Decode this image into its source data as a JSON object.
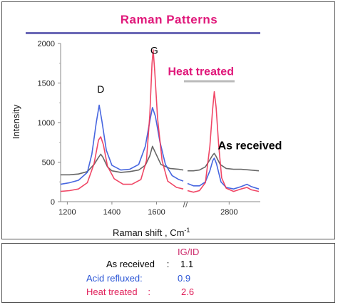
{
  "title": "Raman  Patterns",
  "stats": {
    "header": "IG/ID",
    "rows": [
      {
        "label": "As received",
        "sep": ":",
        "value": "1.1",
        "color": "#000000"
      },
      {
        "label": "Acid refluxed:",
        "sep": "",
        "value": "0.9",
        "color": "#2a55d6"
      },
      {
        "label": "Heat treated",
        "sep": ":",
        "value": "2.6",
        "color": "#e0205a"
      }
    ]
  },
  "chart_data": {
    "type": "line",
    "title": "Raman  Patterns",
    "xlabel": "Raman shift , Cm",
    "xlabel_superscript": "-1",
    "ylabel": "Intensity",
    "ylim": [
      0,
      2000
    ],
    "yticks": [
      "0",
      "500",
      "1000",
      "1500",
      "2000"
    ],
    "xticks": [
      "1200",
      "1400",
      "1600",
      "2800"
    ],
    "axis_break_marker": "//",
    "segments": [
      {
        "name": "left",
        "xlim": [
          1170,
          1720
        ]
      },
      {
        "name": "right",
        "xlim": [
          2520,
          3000
        ]
      }
    ],
    "annotations": [
      {
        "text": "D",
        "color": "#000000",
        "x": 1350,
        "y": 1380
      },
      {
        "text": "G",
        "color": "#000000",
        "x": 1590,
        "y": 1870
      },
      {
        "text": "Heat treated",
        "color": "#e0187a",
        "x": 2610,
        "y": 1600,
        "bold": true
      },
      {
        "text": "As received",
        "color": "#000000",
        "x": 2940,
        "y": 660,
        "bold": true
      }
    ],
    "series": [
      {
        "key": "as_received",
        "color": "#555555",
        "left": [
          [
            1170,
            340
          ],
          [
            1210,
            340
          ],
          [
            1250,
            350
          ],
          [
            1290,
            380
          ],
          [
            1320,
            470
          ],
          [
            1340,
            560
          ],
          [
            1350,
            600
          ],
          [
            1360,
            560
          ],
          [
            1380,
            440
          ],
          [
            1400,
            390
          ],
          [
            1440,
            370
          ],
          [
            1480,
            380
          ],
          [
            1520,
            400
          ],
          [
            1550,
            460
          ],
          [
            1570,
            580
          ],
          [
            1582,
            700
          ],
          [
            1595,
            620
          ],
          [
            1620,
            470
          ],
          [
            1660,
            420
          ],
          [
            1700,
            410
          ],
          [
            1720,
            400
          ]
        ],
        "right": [
          [
            2520,
            390
          ],
          [
            2560,
            390
          ],
          [
            2600,
            400
          ],
          [
            2640,
            440
          ],
          [
            2670,
            530
          ],
          [
            2690,
            590
          ],
          [
            2700,
            610
          ],
          [
            2710,
            580
          ],
          [
            2740,
            470
          ],
          [
            2780,
            420
          ],
          [
            2830,
            410
          ],
          [
            2880,
            410
          ],
          [
            2940,
            400
          ],
          [
            3000,
            390
          ]
        ]
      },
      {
        "key": "acid_refluxed",
        "color": "#3355dd",
        "left": [
          [
            1170,
            220
          ],
          [
            1210,
            240
          ],
          [
            1250,
            270
          ],
          [
            1290,
            370
          ],
          [
            1310,
            600
          ],
          [
            1330,
            1000
          ],
          [
            1343,
            1220
          ],
          [
            1355,
            1020
          ],
          [
            1375,
            650
          ],
          [
            1400,
            460
          ],
          [
            1440,
            400
          ],
          [
            1480,
            410
          ],
          [
            1520,
            470
          ],
          [
            1550,
            700
          ],
          [
            1570,
            1020
          ],
          [
            1582,
            1190
          ],
          [
            1595,
            1080
          ],
          [
            1615,
            760
          ],
          [
            1640,
            470
          ],
          [
            1670,
            330
          ],
          [
            1700,
            280
          ],
          [
            1720,
            260
          ]
        ],
        "right": [
          [
            2520,
            230
          ],
          [
            2560,
            200
          ],
          [
            2600,
            200
          ],
          [
            2640,
            250
          ],
          [
            2670,
            390
          ],
          [
            2690,
            520
          ],
          [
            2700,
            550
          ],
          [
            2715,
            480
          ],
          [
            2745,
            250
          ],
          [
            2780,
            180
          ],
          [
            2830,
            160
          ],
          [
            2880,
            190
          ],
          [
            2920,
            220
          ],
          [
            2950,
            190
          ],
          [
            3000,
            160
          ]
        ]
      },
      {
        "key": "heat_treated",
        "color": "#ee3355",
        "left": [
          [
            1170,
            130
          ],
          [
            1210,
            140
          ],
          [
            1250,
            160
          ],
          [
            1290,
            240
          ],
          [
            1320,
            480
          ],
          [
            1340,
            780
          ],
          [
            1350,
            820
          ],
          [
            1362,
            720
          ],
          [
            1380,
            450
          ],
          [
            1410,
            290
          ],
          [
            1450,
            220
          ],
          [
            1490,
            220
          ],
          [
            1530,
            280
          ],
          [
            1555,
            520
          ],
          [
            1570,
            1100
          ],
          [
            1580,
            1750
          ],
          [
            1585,
            1920
          ],
          [
            1592,
            1650
          ],
          [
            1605,
            1050
          ],
          [
            1625,
            520
          ],
          [
            1650,
            260
          ],
          [
            1690,
            180
          ],
          [
            1720,
            160
          ]
        ],
        "right": [
          [
            2520,
            140
          ],
          [
            2560,
            120
          ],
          [
            2600,
            140
          ],
          [
            2640,
            240
          ],
          [
            2670,
            700
          ],
          [
            2688,
            1150
          ],
          [
            2700,
            1390
          ],
          [
            2712,
            1200
          ],
          [
            2730,
            700
          ],
          [
            2750,
            300
          ],
          [
            2780,
            170
          ],
          [
            2830,
            130
          ],
          [
            2880,
            160
          ],
          [
            2920,
            180
          ],
          [
            2950,
            150
          ],
          [
            3000,
            130
          ]
        ]
      }
    ]
  }
}
